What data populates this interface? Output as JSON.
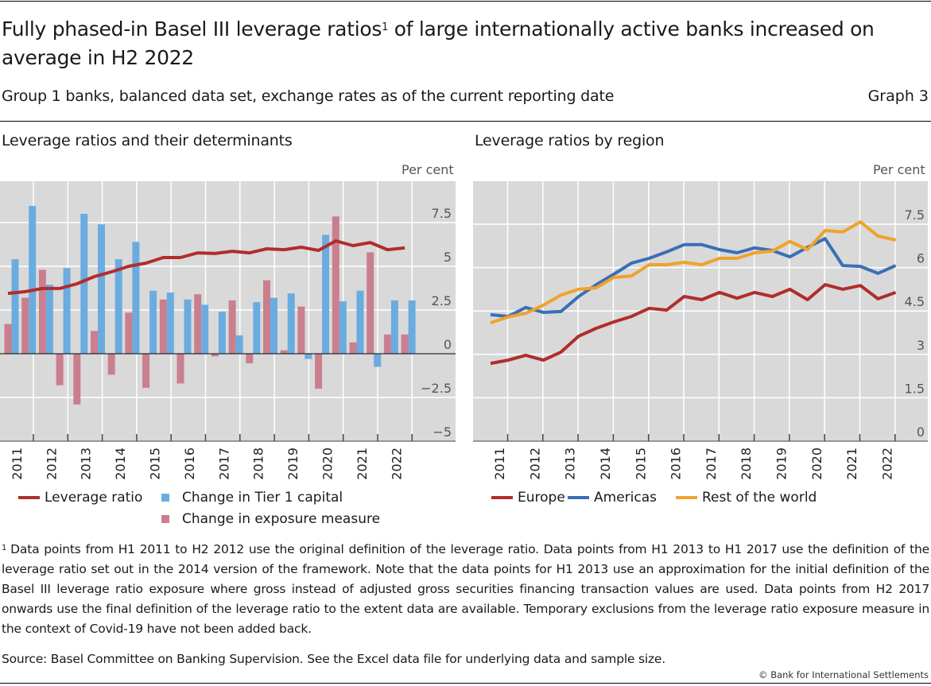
{
  "header": {
    "title_part1": "Fully phased-in Basel III leverage ratios",
    "title_footnote_ref": "1",
    "title_part2": " of large internationally active banks increased on average in H2 2022",
    "subtitle": "Group 1 banks, balanced data set, exchange rates as of the current reporting date",
    "graph_number": "Graph 3"
  },
  "colors": {
    "leverage_ratio": "#b22c2c",
    "tier1": "#6aace0",
    "exposure": "#c97f8e",
    "europe": "#b22c2c",
    "americas": "#3a6fb5",
    "rest_of_world": "#f0a22b",
    "plot_bg": "#d9d9d9",
    "grid": "#ffffff"
  },
  "chart_data": [
    {
      "type": "bar",
      "title": "Leverage ratios and their determinants",
      "unit_label": "Per cent",
      "x_labels": [
        "2011",
        "2012",
        "2013",
        "2014",
        "2015",
        "2016",
        "2017",
        "2018",
        "2019",
        "2020",
        "2021",
        "2022"
      ],
      "periods": [
        "H1 2011",
        "H2 2011",
        "H1 2012",
        "H2 2012",
        "H1 2013",
        "H2 2013",
        "H1 2014",
        "H2 2014",
        "H1 2015",
        "H2 2015",
        "H1 2016",
        "H2 2016",
        "H1 2017",
        "H2 2017",
        "H1 2018",
        "H2 2018",
        "H1 2019",
        "H2 2019",
        "H1 2020",
        "H2 2020",
        "H1 2021",
        "H2 2021",
        "H1 2022",
        "H2 2022"
      ],
      "ylim": [
        -5,
        10
      ],
      "yticks": [
        7.5,
        5,
        2.5,
        0,
        -2.5,
        -5
      ],
      "ytick_labels": [
        "7.5",
        "5",
        "2.5",
        "0",
        "−2.5",
        "−5"
      ],
      "grid": true,
      "legend_position": "bottom",
      "series": [
        {
          "name": "Leverage ratio",
          "kind": "line",
          "color_key": "leverage_ratio",
          "values": [
            3.45,
            3.55,
            3.73,
            3.73,
            4.0,
            4.41,
            4.68,
            5.0,
            5.18,
            5.5,
            5.5,
            5.77,
            5.73,
            5.86,
            5.77,
            6.0,
            5.95,
            6.09,
            5.91,
            6.45,
            6.18,
            6.36,
            5.95,
            6.05
          ]
        },
        {
          "name": "Change in Tier 1 capital",
          "kind": "bar",
          "color_key": "tier1",
          "values": [
            5.4,
            8.45,
            3.95,
            4.9,
            8.0,
            7.4,
            5.4,
            6.4,
            3.6,
            3.5,
            3.1,
            2.8,
            2.4,
            1.05,
            2.95,
            3.2,
            3.45,
            -0.3,
            6.8,
            3.0,
            3.6,
            -0.75,
            3.05,
            3.05
          ]
        },
        {
          "name": "Change in exposure measure",
          "kind": "bar",
          "color_key": "exposure",
          "values": [
            1.7,
            3.2,
            4.8,
            -1.8,
            -2.9,
            1.3,
            -1.2,
            2.35,
            -1.95,
            3.1,
            -1.7,
            3.4,
            -0.15,
            3.05,
            -0.55,
            4.2,
            0.2,
            2.7,
            -2.0,
            7.85,
            0.65,
            5.8,
            1.1,
            1.1
          ]
        }
      ]
    },
    {
      "type": "line",
      "title": "Leverage ratios by region",
      "unit_label": "Per cent",
      "x_labels": [
        "2011",
        "2012",
        "2013",
        "2014",
        "2015",
        "2016",
        "2017",
        "2018",
        "2019",
        "2020",
        "2021",
        "2022"
      ],
      "periods": [
        "H1 2011",
        "H2 2011",
        "H1 2012",
        "H2 2012",
        "H1 2013",
        "H2 2013",
        "H1 2014",
        "H2 2014",
        "H1 2015",
        "H2 2015",
        "H1 2016",
        "H2 2016",
        "H1 2017",
        "H2 2017",
        "H1 2018",
        "H2 2018",
        "H1 2019",
        "H2 2019",
        "H1 2020",
        "H2 2020",
        "H1 2021",
        "H2 2021",
        "H1 2022",
        "H2 2022"
      ],
      "ylim": [
        0,
        9
      ],
      "yticks": [
        7.5,
        6,
        4.5,
        3,
        1.5,
        0
      ],
      "ytick_labels": [
        "7.5",
        "6",
        "4.5",
        "3",
        "1.5",
        "0"
      ],
      "grid": true,
      "legend_position": "bottom",
      "series": [
        {
          "name": "Europe",
          "color_key": "europe",
          "values": [
            2.69,
            2.8,
            2.97,
            2.8,
            3.08,
            3.63,
            3.9,
            4.12,
            4.31,
            4.59,
            4.53,
            5.0,
            4.89,
            5.14,
            4.94,
            5.14,
            5.0,
            5.25,
            4.89,
            5.41,
            5.25,
            5.38,
            4.92,
            5.14
          ]
        },
        {
          "name": "Americas",
          "color_key": "americas",
          "values": [
            4.37,
            4.31,
            4.62,
            4.45,
            4.48,
            5.0,
            5.41,
            5.77,
            6.15,
            6.32,
            6.54,
            6.79,
            6.79,
            6.62,
            6.51,
            6.68,
            6.59,
            6.37,
            6.7,
            7.0,
            6.07,
            6.04,
            5.8,
            6.07
          ]
        },
        {
          "name": "Rest of the world",
          "color_key": "rest_of_world",
          "values": [
            4.09,
            4.29,
            4.42,
            4.7,
            5.05,
            5.25,
            5.3,
            5.66,
            5.71,
            6.1,
            6.1,
            6.18,
            6.1,
            6.32,
            6.32,
            6.51,
            6.57,
            6.9,
            6.62,
            7.28,
            7.23,
            7.58,
            7.09,
            6.95
          ]
        }
      ]
    }
  ],
  "legends": {
    "left": [
      "Leverage ratio",
      "Change in Tier 1 capital",
      "Change in exposure measure"
    ],
    "right": [
      "Europe",
      "Americas",
      "Rest of the world"
    ]
  },
  "footnote": {
    "marker": "1",
    "text": "Data points from H1 2011 to H2 2012 use the original definition of the leverage ratio. Data points from H1 2013 to H1 2017 use the definition of the leverage ratio set out in the 2014 version of the framework. Note that the data points for H1 2013 use an approximation for the initial definition of the Basel III leverage ratio exposure where gross instead of adjusted gross securities financing transaction values are used. Data points from H2 2017 onwards use the final definition of the leverage ratio to the extent data are available. Temporary exclusions from the leverage ratio exposure measure in the context of Covid-19 have not been added back."
  },
  "source": "Source: Basel Committee on Banking Supervision. See the Excel data file for underlying data and sample size.",
  "copyright": "© Bank for International Settlements"
}
